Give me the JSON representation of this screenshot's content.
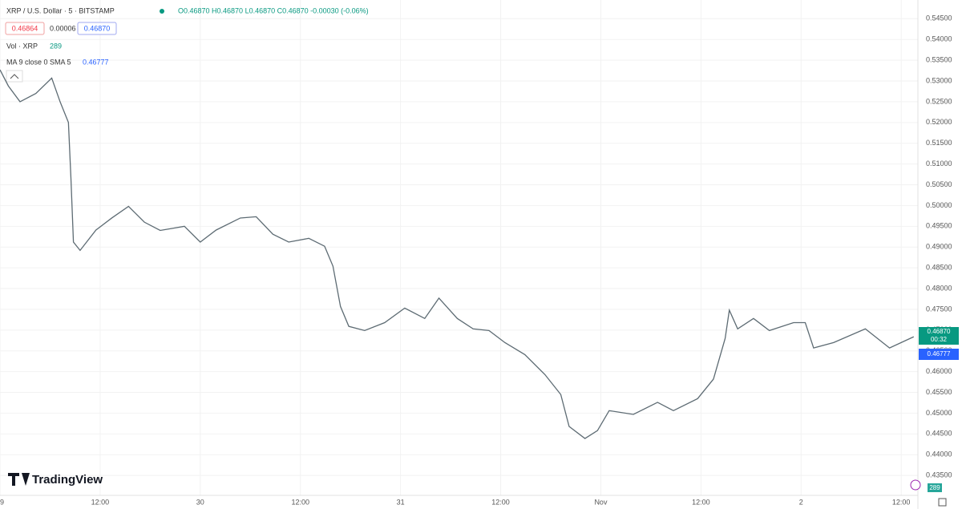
{
  "header": {
    "symbol": "XRP / U.S. Dollar · 5 · BITSTAMP",
    "ohlc": "O0.46870 H0.46870 L0.46870 C0.46870 -0.00030 (-0.06%)",
    "bid": "0.46864",
    "spread": "0.00006",
    "ask": "0.46870",
    "vol_label": "Vol · XRP",
    "vol_value": "289",
    "ma_label": "MA 9 close 0 SMA 5",
    "ma_value": "0.46777"
  },
  "price_tags": {
    "last": "0.46870",
    "countdown": "00:32",
    "ma": "0.46777",
    "volume": "289"
  },
  "logo": "TradingView",
  "chart_data": {
    "type": "line",
    "color": "#5d6b73",
    "x": [
      0,
      1.0,
      2.4,
      4.3,
      6.2,
      7.2,
      8.2,
      8.5,
      8.8,
      9.6,
      11.5,
      13.4,
      15.4,
      17.3,
      19.2,
      22.1,
      24.0,
      25.9,
      28.8,
      30.7,
      32.7,
      34.6,
      37.0,
      38.9,
      39.9,
      40.8,
      41.8,
      43.7,
      46.1,
      48.5,
      50.9,
      52.6,
      54.8,
      56.7,
      58.6,
      60.5,
      62.9,
      65.3,
      67.2,
      68.2,
      70.1,
      71.6,
      73.0,
      75.9,
      78.8,
      80.7,
      83.6,
      85.5,
      86.9,
      87.4,
      88.4,
      90.3,
      92.2,
      95.1,
      96.5,
      97.5,
      99.9,
      103.7,
      106.6,
      109.5
    ],
    "values": [
      0.5327,
      0.5288,
      0.525,
      0.527,
      0.5307,
      0.525,
      0.52,
      0.5066,
      0.4912,
      0.4892,
      0.4941,
      0.497,
      0.4998,
      0.496,
      0.494,
      0.495,
      0.4912,
      0.4941,
      0.497,
      0.4973,
      0.4931,
      0.4912,
      0.4921,
      0.4902,
      0.4854,
      0.4757,
      0.4709,
      0.4699,
      0.4718,
      0.4753,
      0.4728,
      0.4777,
      0.4728,
      0.4703,
      0.4699,
      0.467,
      0.4641,
      0.4593,
      0.4545,
      0.4468,
      0.4439,
      0.4458,
      0.4506,
      0.4497,
      0.4526,
      0.4506,
      0.4535,
      0.4582,
      0.468,
      0.4748,
      0.4703,
      0.4728,
      0.4699,
      0.4718,
      0.4718,
      0.4657,
      0.467,
      0.4703,
      0.4657,
      0.4684
    ],
    "xlim": [
      0,
      110
    ],
    "xticks": [
      {
        "value": 0,
        "label": "29"
      },
      {
        "value": 12,
        "label": "12:00"
      },
      {
        "value": 24,
        "label": "30"
      },
      {
        "value": 36,
        "label": "12:00"
      },
      {
        "value": 48,
        "label": "31"
      },
      {
        "value": 60,
        "label": "12:00"
      },
      {
        "value": 72,
        "label": "Nov"
      },
      {
        "value": 84,
        "label": "12:00"
      },
      {
        "value": 96,
        "label": "2"
      },
      {
        "value": 108,
        "label": "12:00"
      }
    ],
    "ylim": [
      0.4302,
      0.5495
    ],
    "yticks": [
      {
        "value": 0.435,
        "label": "0.43500"
      },
      {
        "value": 0.44,
        "label": "0.44000"
      },
      {
        "value": 0.445,
        "label": "0.44500"
      },
      {
        "value": 0.45,
        "label": "0.45000"
      },
      {
        "value": 0.455,
        "label": "0.45500"
      },
      {
        "value": 0.46,
        "label": "0.46000"
      },
      {
        "value": 0.465,
        "label": "0.46500"
      },
      {
        "value": 0.47,
        "label": "0.47000"
      },
      {
        "value": 0.475,
        "label": "0.47500"
      },
      {
        "value": 0.48,
        "label": "0.48000"
      },
      {
        "value": 0.485,
        "label": "0.48500"
      },
      {
        "value": 0.49,
        "label": "0.49000"
      },
      {
        "value": 0.495,
        "label": "0.49500"
      },
      {
        "value": 0.5,
        "label": "0.50000"
      },
      {
        "value": 0.505,
        "label": "0.50500"
      },
      {
        "value": 0.51,
        "label": "0.51000"
      },
      {
        "value": 0.515,
        "label": "0.51500"
      },
      {
        "value": 0.52,
        "label": "0.52000"
      },
      {
        "value": 0.525,
        "label": "0.52500"
      },
      {
        "value": 0.53,
        "label": "0.53000"
      },
      {
        "value": 0.535,
        "label": "0.53500"
      },
      {
        "value": 0.54,
        "label": "0.54000"
      },
      {
        "value": 0.545,
        "label": "0.54500"
      }
    ],
    "grid": true
  }
}
